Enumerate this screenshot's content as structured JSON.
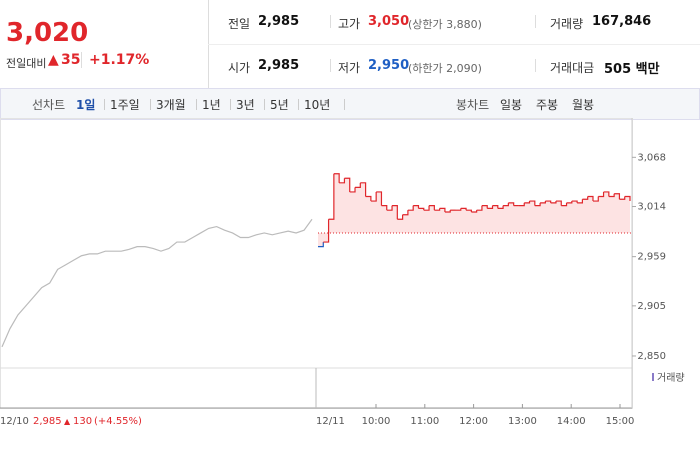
{
  "header": {
    "price": "3,020",
    "change_label": "전일대비",
    "change": "35",
    "change_rate": "+1.17%",
    "stats": [
      {
        "label": "전일",
        "value": "2,985"
      },
      {
        "label": "고가",
        "value": "3,050",
        "note": "(상한가 3,880)"
      },
      {
        "label": "거래량",
        "value": "167,846"
      },
      {
        "label": "시가",
        "value": "2,985"
      },
      {
        "label": "저가",
        "value": "2,950",
        "note": "(하한가 2,090)"
      },
      {
        "label": "거래대금",
        "value": "505 백만"
      }
    ]
  },
  "tabs": {
    "line_label": "선차트",
    "line": [
      "1일",
      "1주일",
      "3개월",
      "1년",
      "3년",
      "5년",
      "10년"
    ],
    "candle_label": "봉차트",
    "candle": [
      "일봉",
      "주봉",
      "월봉"
    ]
  },
  "chart_data": {
    "type": "line",
    "volume_legend": "거래량",
    "prev_day": {
      "date": "12/10",
      "close": "2,985",
      "change": "130",
      "rate": "(+4.55%)"
    },
    "today_label": "12/11",
    "times": [
      "10:00",
      "11:00",
      "12:00",
      "13:00",
      "14:00",
      "15:00"
    ],
    "reference_line": 2985,
    "ylim": [
      2839,
      3087
    ],
    "yticks": [
      {
        "value": 3068,
        "label": "3,068"
      },
      {
        "value": 3014,
        "label": "3,014"
      },
      {
        "value": 2959,
        "label": "2,959"
      },
      {
        "value": 2905,
        "label": "2,905"
      },
      {
        "value": 2850,
        "label": "2,850"
      }
    ],
    "series": [
      {
        "color": "#bbbbbb",
        "values": [
          2860,
          2880,
          2895,
          2905,
          2915,
          2925,
          2930,
          2945,
          2950,
          2955,
          2960,
          2962,
          2962,
          2965,
          2965,
          2965,
          2967,
          2970,
          2970,
          2968,
          2965,
          2968,
          2975,
          2975,
          2980,
          2985,
          2990,
          2992,
          2988,
          2985,
          2980,
          2980,
          2983,
          2985,
          2983,
          2985,
          2987,
          2985,
          2988,
          3000
        ]
      },
      {
        "color": "#e0262b",
        "down_color": "#1f5fc4",
        "fill": "#fde3e3",
        "values": [
          2970,
          2975,
          3000,
          3050,
          3040,
          3045,
          3030,
          3035,
          3040,
          3025,
          3020,
          3030,
          3015,
          3010,
          3015,
          3000,
          3005,
          3010,
          3015,
          3012,
          3010,
          3015,
          3010,
          3012,
          3008,
          3010,
          3010,
          3012,
          3010,
          3008,
          3010,
          3015,
          3012,
          3015,
          3012,
          3015,
          3018,
          3015,
          3015,
          3018,
          3020,
          3015,
          3018,
          3020,
          3018,
          3020,
          3015,
          3018,
          3020,
          3018,
          3022,
          3025,
          3020,
          3025,
          3030,
          3025,
          3028,
          3022,
          3025,
          3020
        ]
      }
    ]
  }
}
